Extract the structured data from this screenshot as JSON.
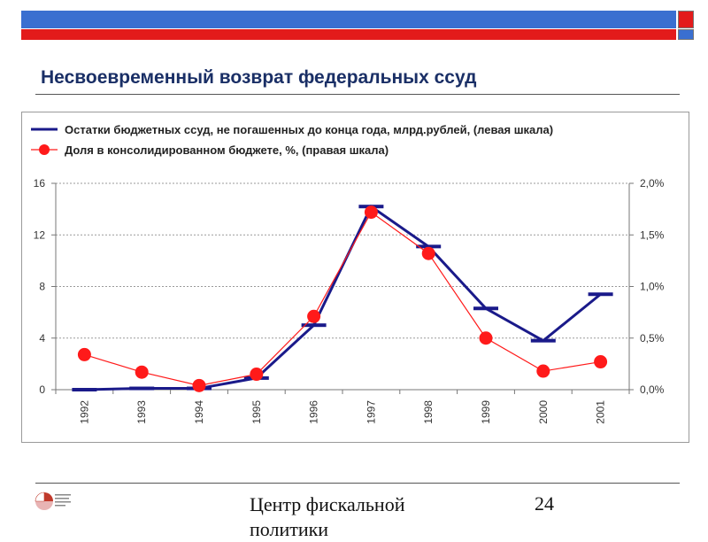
{
  "slide": {
    "title": "Несвоевременный возврат федеральных ссуд",
    "footer_text_line1": "Центр фискальной",
    "footer_text_line2": "политики",
    "page_number": "24",
    "colors": {
      "blue_bar": "#3a6fd0",
      "red_bar": "#e31b1b",
      "title": "#1a2f66"
    }
  },
  "chart_data": {
    "type": "line",
    "categories": [
      "1992",
      "1993",
      "1994",
      "1995",
      "1996",
      "1997",
      "1998",
      "1999",
      "2000",
      "2001"
    ],
    "series": [
      {
        "name": "Остатки бюджетных ссуд, не погашенных до конца года, млрд.рублей, (левая шкала)",
        "axis": "left",
        "color": "#1a1a8a",
        "marker": "dash",
        "values": [
          0,
          0.1,
          0.1,
          0.9,
          5.0,
          14.2,
          11.1,
          6.3,
          3.8,
          7.4
        ]
      },
      {
        "name": "Доля в консолидированном бюджете, %, (правая шкала)",
        "axis": "right",
        "color": "#ff1a1a",
        "marker": "circle",
        "values": [
          0.34,
          0.17,
          0.04,
          0.15,
          0.71,
          1.72,
          1.32,
          0.5,
          0.18,
          0.27
        ]
      }
    ],
    "y_left": {
      "ticks": [
        "0",
        "4",
        "8",
        "12",
        "16"
      ],
      "tick_values": [
        0,
        4,
        8,
        12,
        16
      ],
      "ylim": [
        0,
        16
      ]
    },
    "y_right": {
      "ticks": [
        "0,0%",
        "0,5%",
        "1,0%",
        "1,5%",
        "2,0%"
      ],
      "tick_values": [
        0,
        0.5,
        1.0,
        1.5,
        2.0
      ],
      "ylim": [
        0,
        2.0
      ]
    },
    "grid": true,
    "legend_position": "top-left"
  }
}
